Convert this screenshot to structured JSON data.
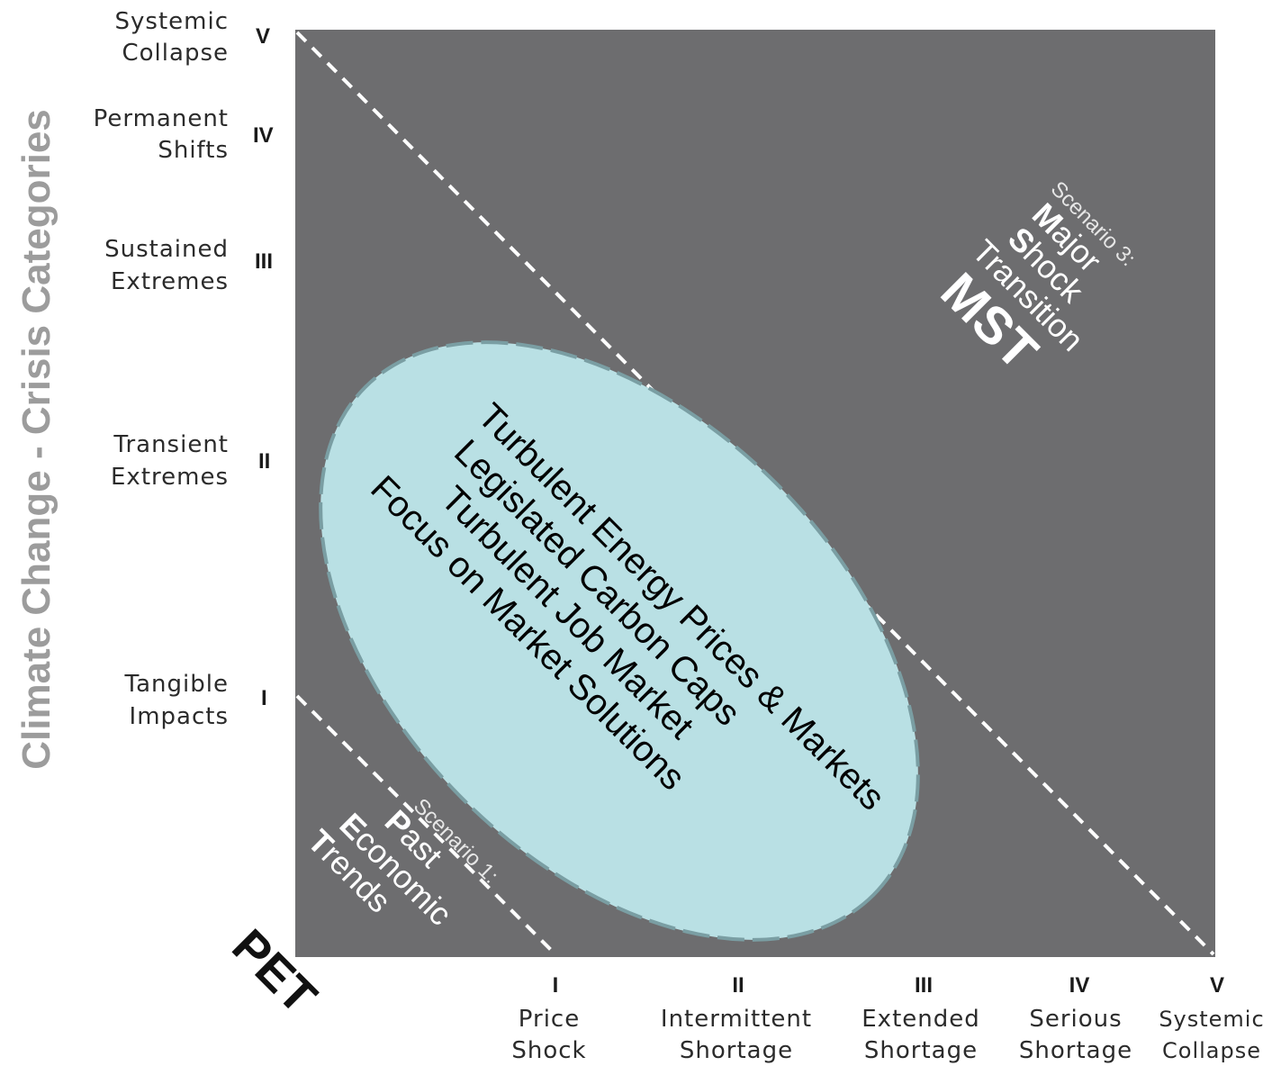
{
  "y_axis": {
    "title": "Climate Change - Crisis Categories",
    "levels": [
      {
        "roman": "V",
        "line1": "Systemic",
        "line2": "Collapse"
      },
      {
        "roman": "IV",
        "line1": "Permanent",
        "line2": "Shifts"
      },
      {
        "roman": "III",
        "line1": "Sustained",
        "line2": "Extremes"
      },
      {
        "roman": "II",
        "line1": "Transient",
        "line2": "Extremes"
      },
      {
        "roman": "I",
        "line1": "Tangible",
        "line2": "Impacts"
      }
    ]
  },
  "x_axis": {
    "title": "PET",
    "levels": [
      {
        "roman": "I",
        "line1": "Price",
        "line2": "Shock"
      },
      {
        "roman": "II",
        "line1": "Intermittent",
        "line2": "Shortage"
      },
      {
        "roman": "III",
        "line1": "Extended",
        "line2": "Shortage"
      },
      {
        "roman": "IV",
        "line1": "Serious",
        "line2": "Shortage"
      },
      {
        "roman": "V",
        "line1": "Systemic",
        "line2": "Collapse"
      }
    ]
  },
  "scenario1": {
    "label": "Scenario 1:",
    "word1_cap": "P",
    "word1_rest": "ast",
    "word2_cap": "E",
    "word2_rest": "conomic",
    "word3_cap": "T",
    "word3_rest": "rends"
  },
  "scenario3": {
    "label": "Scenario 3:",
    "word1_cap": "M",
    "word1_rest": "ajor",
    "word2_cap": "S",
    "word2_rest": "hock",
    "word3_cap": "T",
    "word3_rest": "ransition",
    "abbrev": "MST"
  },
  "ellipse": {
    "lines": [
      "Turbulent Energy Prices & Markets",
      "Legislated Carbon Caps",
      "Turbulent Job Market",
      "Focus on Market Solutions"
    ]
  },
  "colors": {
    "panel": "#6d6d6f",
    "ellipse_fill": "#b9e0e4",
    "ellipse_stroke": "#7a9ea3",
    "dashed_line": "#ffffff",
    "axis_title": "#9c9c9c"
  }
}
